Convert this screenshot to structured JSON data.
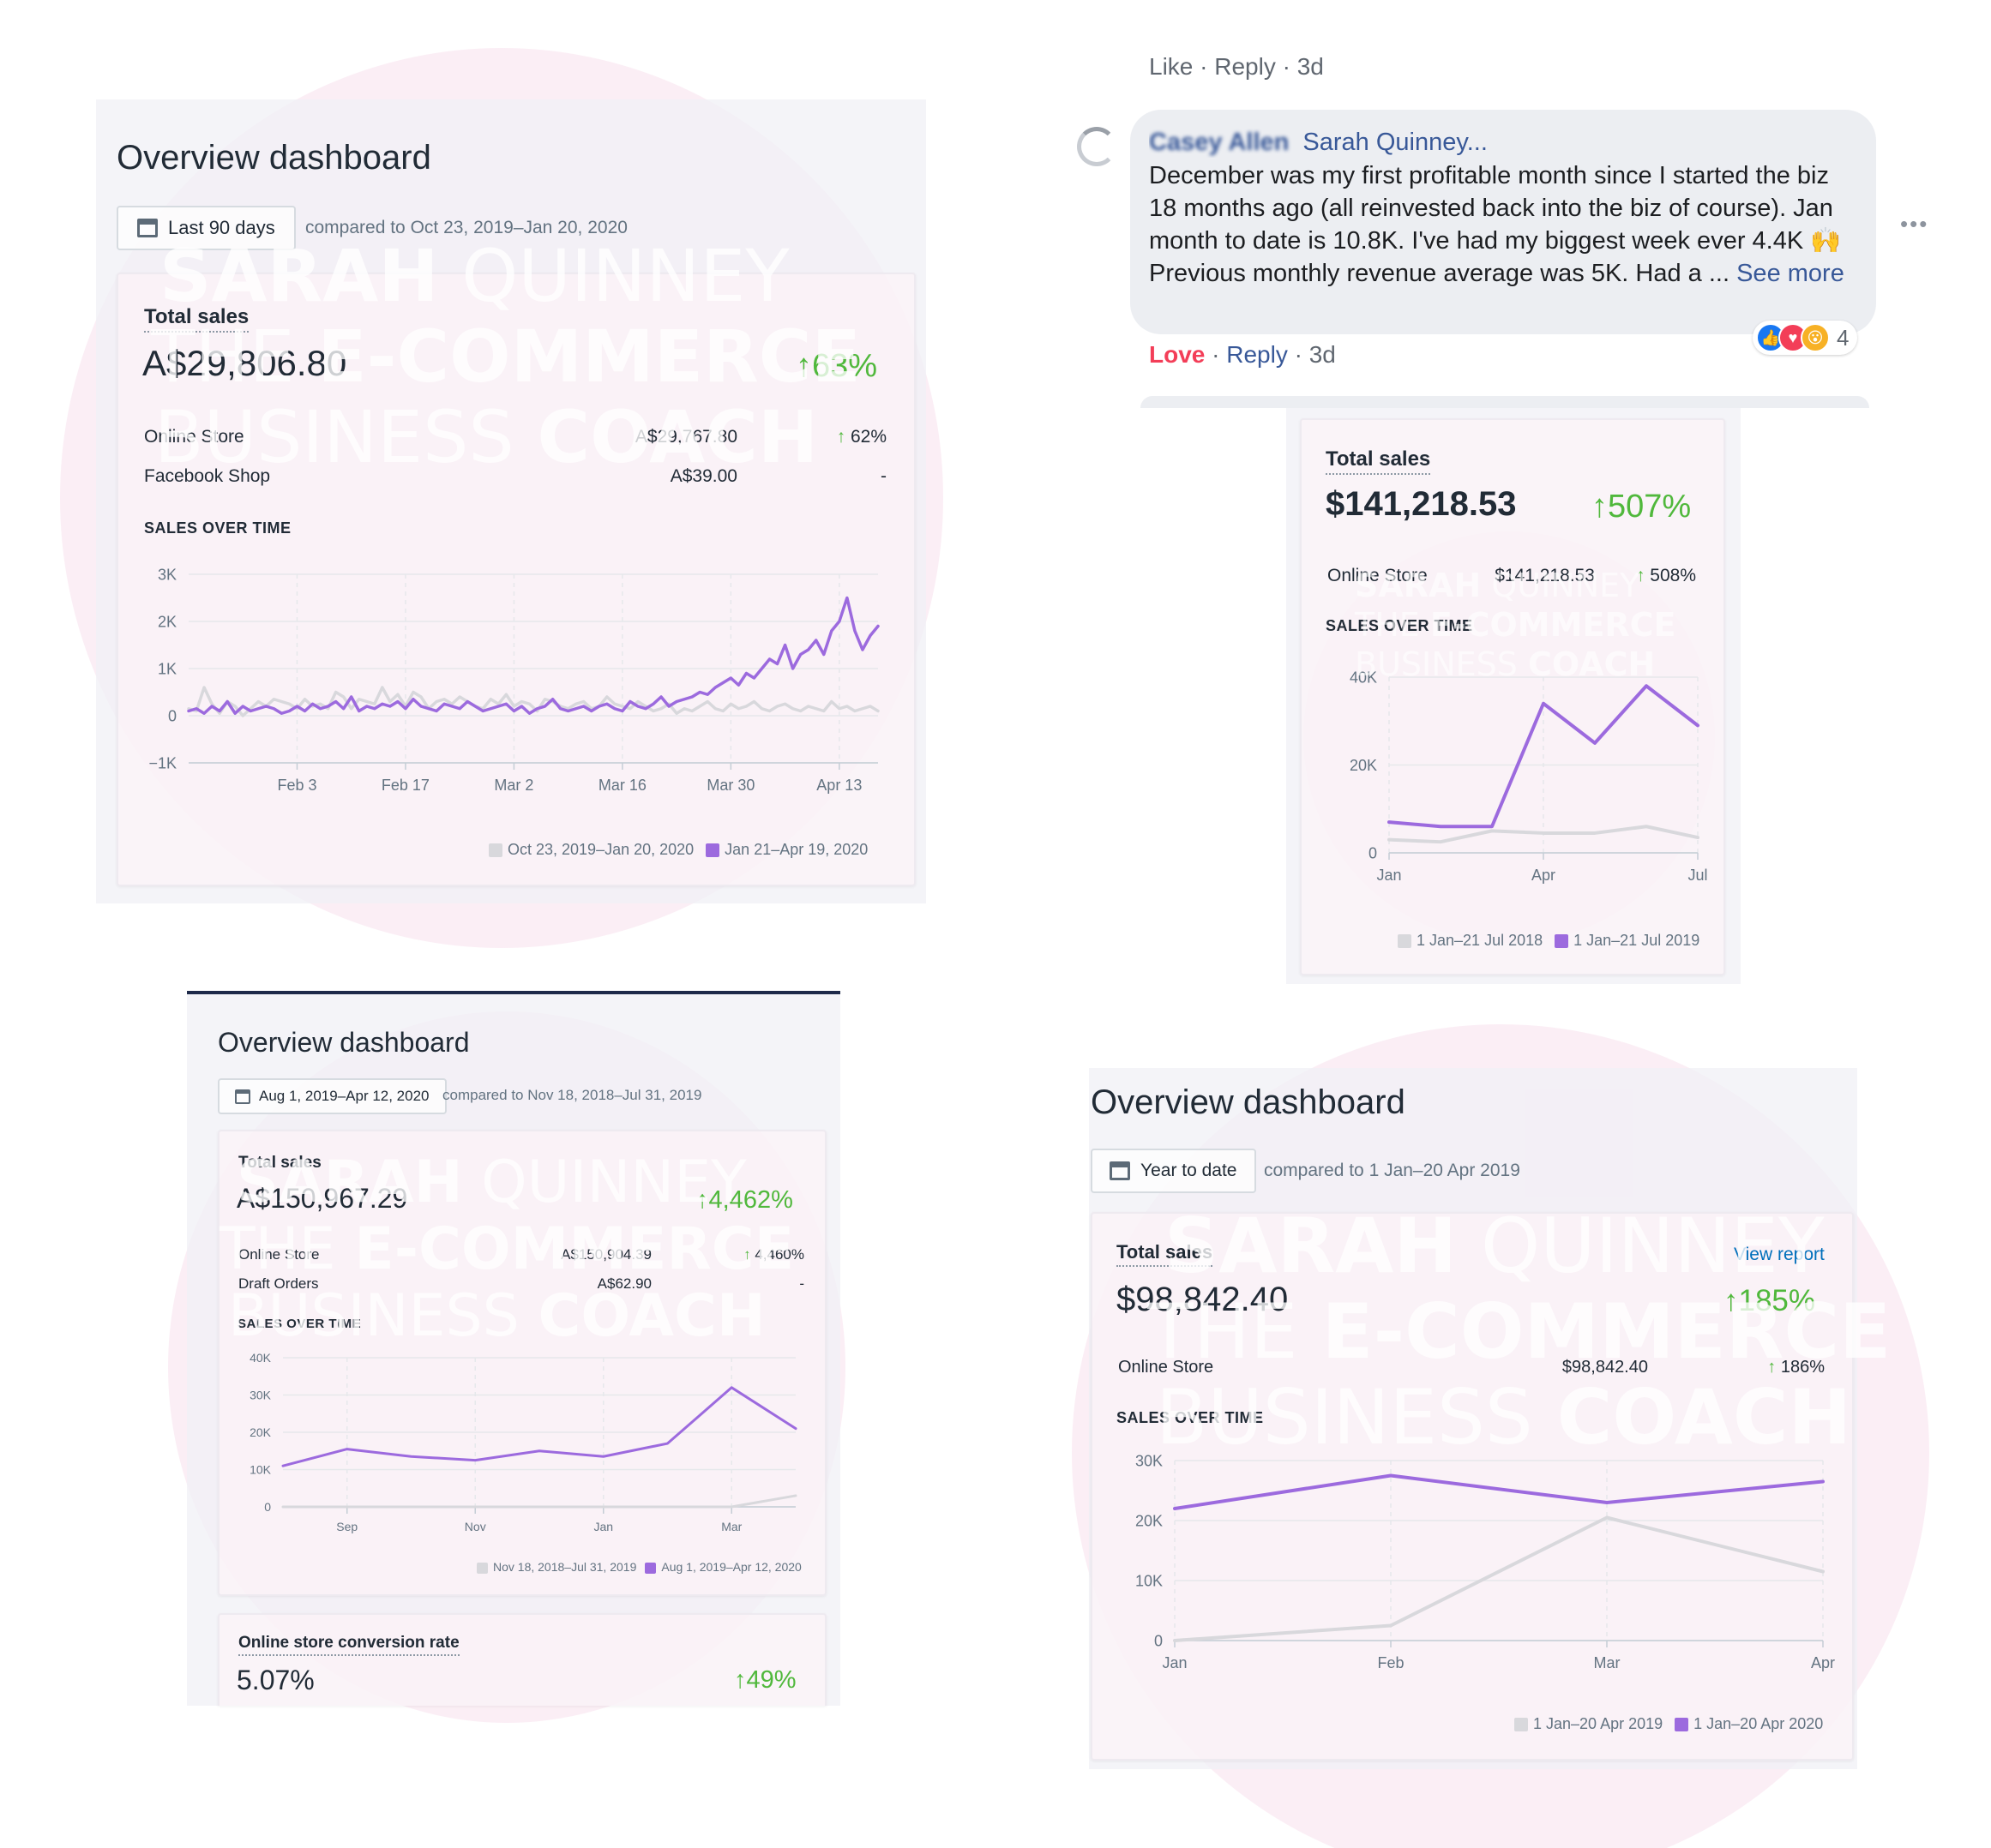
{
  "watermark": {
    "line1_bold": "SARAH",
    "line1_light": "QUINNEY",
    "line2_light": "THE",
    "line2_bold": "E-COMMERCE",
    "line3_light": "BUSINESS",
    "line3_bold": "COACH",
    "color": "#f8e0ec"
  },
  "dash1": {
    "title": "Overview dashboard",
    "date_range": "Last 90 days",
    "compared": "compared to Oct 23, 2019–Jan 20, 2020",
    "total_label": "Total sales",
    "total_value": "A$29,806.80",
    "total_change": "63%",
    "rows": [
      {
        "label": "Online Store",
        "value": "A$29,767.80",
        "change": "62%",
        "up": true
      },
      {
        "label": "Facebook Shop",
        "value": "A$39.00",
        "change": "-",
        "up": false
      }
    ],
    "section": "SALES OVER TIME",
    "chart_data": {
      "type": "line",
      "title": "",
      "y_ticks": [
        "3K",
        "2K",
        "1K",
        "0",
        "−1K"
      ],
      "x_ticks": [
        "Feb 3",
        "Feb 17",
        "Mar 2",
        "Mar 16",
        "Mar 30",
        "Apr 13"
      ],
      "ylim": [
        -1000,
        3000
      ],
      "x_count": 90,
      "series": [
        {
          "name": "Oct 23, 2019–Jan 20, 2020",
          "color": "#d8d8dc",
          "values": [
            150,
            100,
            600,
            250,
            50,
            300,
            200,
            0,
            150,
            300,
            200,
            350,
            300,
            250,
            150,
            350,
            200,
            250,
            150,
            500,
            400,
            150,
            350,
            300,
            250,
            600,
            300,
            450,
            200,
            500,
            400,
            150,
            300,
            350,
            250,
            400,
            300,
            200,
            150,
            350,
            250,
            450,
            200,
            300,
            250,
            100,
            350,
            300,
            200,
            150,
            250,
            300,
            150,
            200,
            400,
            250,
            200,
            150,
            300,
            200,
            100,
            150,
            250,
            50,
            150,
            100,
            200,
            300,
            150,
            100,
            250,
            150,
            200,
            300,
            150,
            100,
            200,
            250,
            150,
            100,
            200,
            150,
            100,
            300,
            150,
            200,
            100,
            150,
            200,
            100
          ]
        },
        {
          "name": "Jan 21–Apr 19, 2020",
          "color": "#9c6ade",
          "values": [
            100,
            150,
            50,
            200,
            100,
            300,
            50,
            200,
            100,
            150,
            200,
            150,
            50,
            100,
            200,
            100,
            250,
            150,
            200,
            300,
            150,
            400,
            100,
            200,
            150,
            250,
            200,
            300,
            150,
            350,
            200,
            150,
            100,
            250,
            200,
            150,
            300,
            200,
            100,
            150,
            200,
            250,
            100,
            200,
            50,
            150,
            200,
            350,
            150,
            100,
            150,
            200,
            100,
            200,
            250,
            150,
            100,
            300,
            200,
            150,
            250,
            400,
            200,
            300,
            350,
            400,
            500,
            450,
            600,
            700,
            800,
            650,
            900,
            800,
            1000,
            1200,
            1100,
            1500,
            1000,
            1300,
            1400,
            1600,
            1300,
            1800,
            2000,
            2500,
            1800,
            1400,
            1700,
            1900
          ]
        }
      ]
    },
    "legend": [
      "Oct 23, 2019–Jan 20, 2020",
      "Jan 21–Apr 19, 2020"
    ]
  },
  "fb": {
    "top_meta": "Like · Reply · 3d",
    "author": "Casey Allen",
    "mention": "Sarah Quinney...",
    "comment": "December was my first profitable month since I started the biz 18 months ago (all reinvested back into the biz of course). Jan month to date is 10.8K. I've had my biggest week ever 4.4K 🙌 Previous monthly revenue average was 5K. Had a ...",
    "see_more": "See more",
    "love": "Love",
    "reply": "Reply",
    "time": "3d",
    "react_count": "4",
    "more_icon": "more-dots-icon"
  },
  "dash2": {
    "total_label": "Total sales",
    "total_value": "$141,218.53",
    "total_change": "507%",
    "rows": [
      {
        "label": "Online Store",
        "value": "$141,218.53",
        "change": "508%",
        "up": true
      }
    ],
    "section": "SALES OVER TIME",
    "chart_data": {
      "type": "line",
      "title": "",
      "y_ticks": [
        "40K",
        "20K",
        "0"
      ],
      "x_ticks": [
        "Jan",
        "Apr",
        "Jul"
      ],
      "ylim": [
        0,
        40000
      ],
      "x_count": 7,
      "series": [
        {
          "name": "1 Jan–21 Jul 2018",
          "color": "#d8d8dc",
          "values": [
            3000,
            2500,
            5000,
            4500,
            4500,
            6000,
            3500
          ]
        },
        {
          "name": "1 Jan–21 Jul 2019",
          "color": "#9c6ade",
          "values": [
            7000,
            6000,
            6000,
            34000,
            25000,
            38000,
            29000
          ]
        }
      ]
    },
    "legend": [
      "1 Jan–21 Jul 2018",
      "1 Jan–21 Jul 2019"
    ]
  },
  "dash3": {
    "title": "Overview dashboard",
    "date_range": "Aug 1, 2019–Apr 12, 2020",
    "compared": "compared to Nov 18, 2018–Jul 31, 2019",
    "total_label": "Total sales",
    "total_value": "A$150,967.29",
    "total_change": "4,462%",
    "rows": [
      {
        "label": "Online Store",
        "value": "A$150,904.39",
        "change": "4,460%",
        "up": true
      },
      {
        "label": "Draft Orders",
        "value": "A$62.90",
        "change": "-",
        "up": false
      }
    ],
    "section": "SALES OVER TIME",
    "chart_data": {
      "type": "line",
      "title": "",
      "y_ticks": [
        "40K",
        "30K",
        "20K",
        "10K",
        "0"
      ],
      "x_ticks": [
        "Sep",
        "Nov",
        "Jan",
        "Mar"
      ],
      "ylim": [
        0,
        40000
      ],
      "x_count": 9,
      "series": [
        {
          "name": "Nov 18, 2018–Jul 31, 2019",
          "color": "#d8d8dc",
          "values": [
            0,
            0,
            0,
            0,
            0,
            0,
            0,
            0,
            3000
          ]
        },
        {
          "name": "Aug 1, 2019–Apr 12, 2020",
          "color": "#9c6ade",
          "values": [
            11000,
            15500,
            13500,
            12500,
            15000,
            13500,
            17000,
            32000,
            21000
          ]
        }
      ]
    },
    "legend": [
      "Nov 18, 2018–Jul 31, 2019",
      "Aug 1, 2019–Apr 12, 2020"
    ],
    "conversion_label": "Online store conversion rate",
    "conversion_value": "5.07%",
    "conversion_change": "49%"
  },
  "dash4": {
    "title": "Overview dashboard",
    "date_range": "Year to date",
    "compared": "compared to 1 Jan–20 Apr 2019",
    "total_label": "Total sales",
    "view_report": "View report",
    "total_value": "$98,842.40",
    "total_change": "185%",
    "rows": [
      {
        "label": "Online Store",
        "value": "$98,842.40",
        "change": "186%",
        "up": true
      }
    ],
    "section": "SALES OVER TIME",
    "chart_data": {
      "type": "line",
      "title": "",
      "y_ticks": [
        "30K",
        "20K",
        "10K",
        "0"
      ],
      "x_ticks": [
        "Jan",
        "Feb",
        "Mar",
        "Apr"
      ],
      "ylim": [
        0,
        30000
      ],
      "x_count": 4,
      "series": [
        {
          "name": "1 Jan–20 Apr 2019",
          "color": "#d8d8dc",
          "values": [
            0,
            2500,
            20500,
            11500
          ]
        },
        {
          "name": "1 Jan–20 Apr 2020",
          "color": "#9c6ade",
          "values": [
            22000,
            27500,
            23000,
            26500
          ]
        }
      ]
    },
    "legend": [
      "1 Jan–20 Apr 2019",
      "1 Jan–20 Apr 2020"
    ]
  }
}
